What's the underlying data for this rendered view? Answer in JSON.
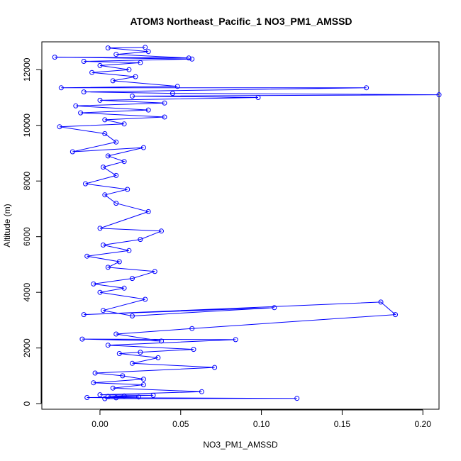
{
  "chart_data": {
    "type": "line",
    "title": "ATOM3 Northeast_Pacific_1 NO3_PM1_AMSSD",
    "xlabel": "NO3_PM1_AMSSD",
    "ylabel": "Altitude (m)",
    "xlim": [
      -0.036,
      0.21
    ],
    "ylim": [
      -200,
      13000
    ],
    "xticks": [
      0.0,
      0.05,
      0.1,
      0.15,
      0.2
    ],
    "xtick_labels": [
      "0.00",
      "0.05",
      "0.10",
      "0.15",
      "0.20"
    ],
    "yticks": [
      0,
      2000,
      4000,
      6000,
      8000,
      10000,
      12000
    ],
    "ytick_labels": [
      "0",
      "2000",
      "4000",
      "6000",
      "8000",
      "10000",
      "12000"
    ],
    "grid": false,
    "legend": "none",
    "series": [
      {
        "color": "#0000ff",
        "marker": "open-circle",
        "points": [
          {
            "x": 0.003,
            "y": 180
          },
          {
            "x": 0.122,
            "y": 190
          },
          {
            "x": 0.01,
            "y": 210
          },
          {
            "x": -0.008,
            "y": 220
          },
          {
            "x": 0.024,
            "y": 240
          },
          {
            "x": 0.005,
            "y": 260
          },
          {
            "x": 0.015,
            "y": 280
          },
          {
            "x": 0.033,
            "y": 300
          },
          {
            "x": 0.0,
            "y": 320
          },
          {
            "x": 0.063,
            "y": 430
          },
          {
            "x": 0.008,
            "y": 560
          },
          {
            "x": 0.027,
            "y": 680
          },
          {
            "x": -0.004,
            "y": 750
          },
          {
            "x": 0.027,
            "y": 880
          },
          {
            "x": 0.014,
            "y": 1000
          },
          {
            "x": -0.003,
            "y": 1100
          },
          {
            "x": 0.071,
            "y": 1300
          },
          {
            "x": 0.02,
            "y": 1450
          },
          {
            "x": 0.036,
            "y": 1650
          },
          {
            "x": 0.012,
            "y": 1800
          },
          {
            "x": 0.025,
            "y": 1850
          },
          {
            "x": 0.058,
            "y": 1950
          },
          {
            "x": 0.005,
            "y": 2100
          },
          {
            "x": 0.084,
            "y": 2300
          },
          {
            "x": -0.011,
            "y": 2320
          },
          {
            "x": 0.038,
            "y": 2250
          },
          {
            "x": 0.01,
            "y": 2500
          },
          {
            "x": 0.057,
            "y": 2700
          },
          {
            "x": 0.183,
            "y": 3200
          },
          {
            "x": 0.174,
            "y": 3650
          },
          {
            "x": -0.01,
            "y": 3200
          },
          {
            "x": 0.108,
            "y": 3450
          },
          {
            "x": 0.02,
            "y": 3150
          },
          {
            "x": 0.002,
            "y": 3350
          },
          {
            "x": 0.028,
            "y": 3750
          },
          {
            "x": 0.0,
            "y": 4000
          },
          {
            "x": 0.015,
            "y": 4150
          },
          {
            "x": -0.004,
            "y": 4300
          },
          {
            "x": 0.02,
            "y": 4500
          },
          {
            "x": 0.034,
            "y": 4750
          },
          {
            "x": 0.005,
            "y": 4900
          },
          {
            "x": 0.012,
            "y": 5100
          },
          {
            "x": -0.008,
            "y": 5300
          },
          {
            "x": 0.018,
            "y": 5500
          },
          {
            "x": 0.002,
            "y": 5700
          },
          {
            "x": 0.025,
            "y": 5900
          },
          {
            "x": 0.038,
            "y": 6200
          },
          {
            "x": 0.0,
            "y": 6300
          },
          {
            "x": 0.03,
            "y": 6900
          },
          {
            "x": 0.01,
            "y": 7200
          },
          {
            "x": 0.003,
            "y": 7500
          },
          {
            "x": 0.017,
            "y": 7700
          },
          {
            "x": -0.009,
            "y": 7900
          },
          {
            "x": 0.01,
            "y": 8200
          },
          {
            "x": 0.002,
            "y": 8500
          },
          {
            "x": 0.015,
            "y": 8700
          },
          {
            "x": 0.005,
            "y": 8900
          },
          {
            "x": 0.027,
            "y": 9200
          },
          {
            "x": -0.017,
            "y": 9050
          },
          {
            "x": 0.01,
            "y": 9400
          },
          {
            "x": 0.003,
            "y": 9700
          },
          {
            "x": -0.025,
            "y": 9950
          },
          {
            "x": 0.015,
            "y": 10050
          },
          {
            "x": 0.003,
            "y": 10200
          },
          {
            "x": 0.04,
            "y": 10300
          },
          {
            "x": -0.012,
            "y": 10450
          },
          {
            "x": 0.03,
            "y": 10550
          },
          {
            "x": -0.015,
            "y": 10700
          },
          {
            "x": 0.04,
            "y": 10800
          },
          {
            "x": 0.0,
            "y": 10900
          },
          {
            "x": 0.098,
            "y": 11000
          },
          {
            "x": 0.02,
            "y": 11050
          },
          {
            "x": 0.21,
            "y": 11100
          },
          {
            "x": 0.045,
            "y": 11150
          },
          {
            "x": -0.01,
            "y": 11200
          },
          {
            "x": 0.165,
            "y": 11350
          },
          {
            "x": -0.024,
            "y": 11350
          },
          {
            "x": 0.048,
            "y": 11400
          },
          {
            "x": 0.008,
            "y": 11600
          },
          {
            "x": 0.022,
            "y": 11750
          },
          {
            "x": -0.005,
            "y": 11900
          },
          {
            "x": 0.018,
            "y": 12000
          },
          {
            "x": 0.0,
            "y": 12150
          },
          {
            "x": 0.025,
            "y": 12250
          },
          {
            "x": -0.01,
            "y": 12300
          },
          {
            "x": 0.057,
            "y": 12380
          },
          {
            "x": -0.028,
            "y": 12450
          },
          {
            "x": 0.055,
            "y": 12420
          },
          {
            "x": 0.01,
            "y": 12550
          },
          {
            "x": 0.03,
            "y": 12650
          },
          {
            "x": 0.005,
            "y": 12780
          },
          {
            "x": 0.028,
            "y": 12800
          }
        ]
      }
    ]
  }
}
